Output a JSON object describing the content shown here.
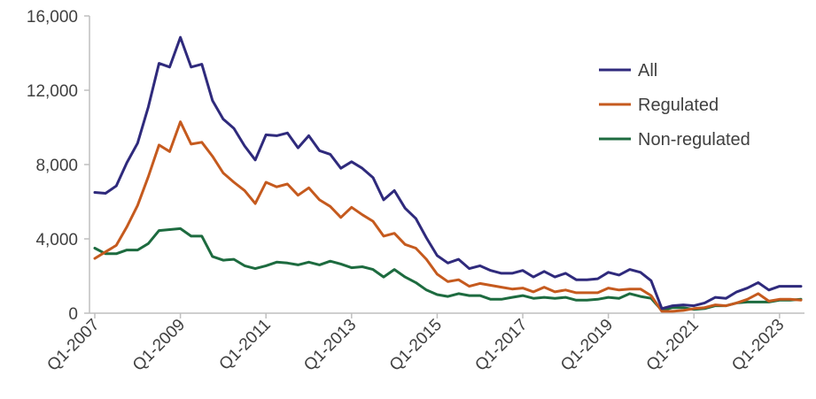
{
  "chart_data": {
    "type": "line",
    "title": "",
    "xlabel": "",
    "ylabel": "",
    "ylim": [
      0,
      16000
    ],
    "yticks": [
      0,
      4000,
      8000,
      12000,
      16000
    ],
    "ytick_labels": [
      "0",
      "4,000",
      "8,000",
      "12,000",
      "16,000"
    ],
    "xtick_labels": [
      "Q1-2007",
      "Q1-2009",
      "Q1-2011",
      "Q1-2013",
      "Q1-2015",
      "Q1-2017",
      "Q1-2019",
      "Q1-2021",
      "Q1-2023"
    ],
    "grid": false,
    "legend_position": "top-right",
    "x": [
      "Q1-2007",
      "Q2-2007",
      "Q3-2007",
      "Q4-2007",
      "Q1-2008",
      "Q2-2008",
      "Q3-2008",
      "Q4-2008",
      "Q1-2009",
      "Q2-2009",
      "Q3-2009",
      "Q4-2009",
      "Q1-2010",
      "Q2-2010",
      "Q3-2010",
      "Q4-2010",
      "Q1-2011",
      "Q2-2011",
      "Q3-2011",
      "Q4-2011",
      "Q1-2012",
      "Q2-2012",
      "Q3-2012",
      "Q4-2012",
      "Q1-2013",
      "Q2-2013",
      "Q3-2013",
      "Q4-2013",
      "Q1-2014",
      "Q2-2014",
      "Q3-2014",
      "Q4-2014",
      "Q1-2015",
      "Q2-2015",
      "Q3-2015",
      "Q4-2015",
      "Q1-2016",
      "Q2-2016",
      "Q3-2016",
      "Q4-2016",
      "Q1-2017",
      "Q2-2017",
      "Q3-2017",
      "Q4-2017",
      "Q1-2018",
      "Q2-2018",
      "Q3-2018",
      "Q4-2018",
      "Q1-2019",
      "Q2-2019",
      "Q3-2019",
      "Q4-2019",
      "Q1-2020",
      "Q2-2020",
      "Q3-2020",
      "Q4-2020",
      "Q1-2021",
      "Q2-2021",
      "Q3-2021",
      "Q4-2021",
      "Q1-2022",
      "Q2-2022",
      "Q3-2022",
      "Q4-2022",
      "Q1-2023",
      "Q2-2023",
      "Q3-2023"
    ],
    "series": [
      {
        "name": "All",
        "color": "#2f2a7c",
        "values": [
          6500,
          6450,
          6850,
          8100,
          9150,
          11100,
          13450,
          13250,
          14850,
          13250,
          13400,
          11450,
          10450,
          9950,
          9000,
          8250,
          9600,
          9550,
          9700,
          8900,
          9550,
          8750,
          8550,
          7800,
          8150,
          7800,
          7300,
          6100,
          6600,
          5650,
          5100,
          4050,
          3100,
          2700,
          2900,
          2400,
          2550,
          2300,
          2150,
          2150,
          2300,
          1950,
          2250,
          1950,
          2150,
          1800,
          1800,
          1850,
          2200,
          2050,
          2350,
          2200,
          1750,
          250,
          400,
          450,
          400,
          550,
          850,
          800,
          1150,
          1350,
          1650,
          1250,
          1450,
          1450,
          1450
        ]
      },
      {
        "name": "Regulated",
        "color": "#c55a1e",
        "values": [
          2950,
          3300,
          3650,
          4650,
          5800,
          7350,
          9050,
          8700,
          10300,
          9100,
          9200,
          8450,
          7550,
          7050,
          6600,
          5900,
          7050,
          6800,
          6950,
          6350,
          6750,
          6100,
          5750,
          5150,
          5700,
          5300,
          4950,
          4150,
          4300,
          3700,
          3500,
          2900,
          2100,
          1700,
          1800,
          1450,
          1600,
          1500,
          1400,
          1300,
          1350,
          1150,
          1400,
          1150,
          1250,
          1100,
          1100,
          1100,
          1350,
          1250,
          1300,
          1300,
          950,
          100,
          100,
          150,
          250,
          300,
          450,
          400,
          550,
          750,
          1050,
          650,
          750,
          750,
          700
        ]
      },
      {
        "name": "Non-regulated",
        "color": "#1d6b3f",
        "values": [
          3500,
          3200,
          3200,
          3400,
          3400,
          3750,
          4450,
          4500,
          4550,
          4150,
          4150,
          3050,
          2850,
          2900,
          2550,
          2400,
          2550,
          2750,
          2700,
          2600,
          2750,
          2600,
          2800,
          2650,
          2450,
          2500,
          2350,
          1950,
          2350,
          1950,
          1650,
          1250,
          1000,
          900,
          1050,
          950,
          950,
          750,
          750,
          850,
          950,
          800,
          850,
          800,
          850,
          700,
          700,
          750,
          850,
          800,
          1050,
          900,
          800,
          150,
          300,
          300,
          200,
          250,
          400,
          400,
          550,
          600,
          600,
          600,
          700,
          700,
          750
        ]
      }
    ]
  }
}
